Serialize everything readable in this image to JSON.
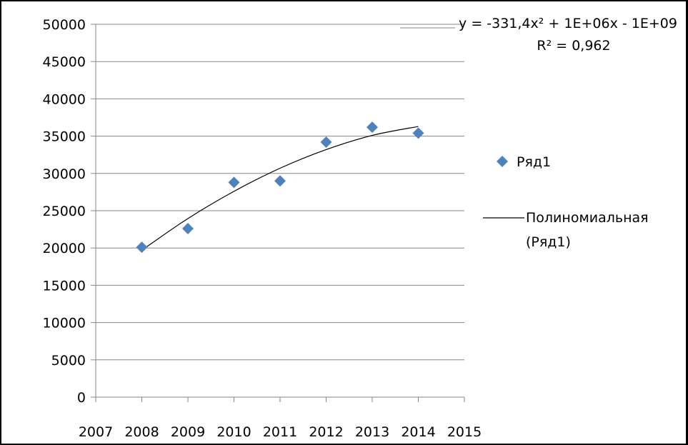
{
  "chart_data": {
    "type": "scatter",
    "title": "",
    "xlabel": "",
    "ylabel": "",
    "xlim": [
      2007,
      2015
    ],
    "ylim": [
      0,
      50000
    ],
    "x_ticks": [
      "2007",
      "2008",
      "2009",
      "2010",
      "2011",
      "2012",
      "2013",
      "2014",
      "2015"
    ],
    "y_ticks": [
      "0",
      "5000",
      "10000",
      "15000",
      "20000",
      "25000",
      "30000",
      "35000",
      "40000",
      "45000",
      "50000"
    ],
    "grid": "horizontal",
    "legend_position": "right",
    "series": [
      {
        "name": "Ряд1",
        "marker": "diamond",
        "color": "#4F81BD",
        "x": [
          2008,
          2009,
          2010,
          2011,
          2012,
          2013,
          2014
        ],
        "y": [
          20100,
          22600,
          28800,
          29000,
          34200,
          36200,
          35400
        ]
      }
    ],
    "trendline": {
      "name_line1": "Полиномиальная",
      "name_line2": "(Ряд1)",
      "type": "polynomial",
      "order": 2,
      "color": "#000000",
      "x": [
        2008,
        2009,
        2010,
        2011,
        2012,
        2013,
        2014
      ],
      "y": [
        19700,
        23950,
        27600,
        30700,
        33200,
        35100,
        36300
      ],
      "equation": "y = -331,4x² + 1E+06x - 1E+09",
      "r_squared": "R² = 0,962"
    }
  }
}
